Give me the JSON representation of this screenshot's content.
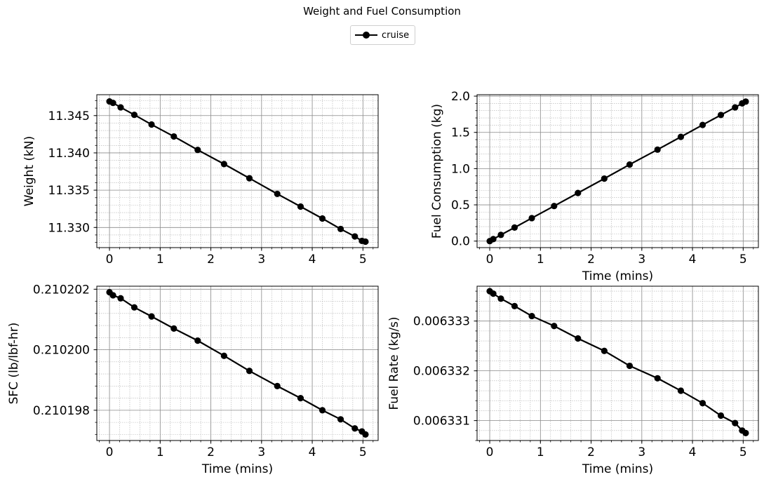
{
  "title": "Weight and Fuel Consumption",
  "legend": {
    "label": "cruise",
    "color": "#000000"
  },
  "chart_data": [
    {
      "type": "line",
      "id": "weight",
      "series": [
        {
          "name": "cruise",
          "x": [
            0,
            0.07,
            0.22,
            0.49,
            0.83,
            1.27,
            1.74,
            2.26,
            2.76,
            3.31,
            3.77,
            4.2,
            4.56,
            4.84,
            4.98,
            5.05
          ],
          "y": [
            11.3469,
            11.3467,
            11.3461,
            11.3451,
            11.3438,
            11.3422,
            11.3404,
            11.3385,
            11.3366,
            11.3345,
            11.3328,
            11.3312,
            11.3298,
            11.3288,
            11.3282,
            11.3281
          ]
        }
      ],
      "xlabel": "",
      "ylabel": "Weight (kN)",
      "xlim": [
        -0.25,
        5.3
      ],
      "ylim": [
        11.3273,
        11.3478
      ],
      "xticks": [
        0,
        1,
        2,
        3,
        4,
        5
      ],
      "xtick_labels": [
        "0",
        "1",
        "2",
        "3",
        "4",
        "5"
      ],
      "yticks": [
        11.33,
        11.335,
        11.34,
        11.345
      ],
      "ytick_labels": [
        "11.330",
        "11.335",
        "11.340",
        "11.345"
      ],
      "grid": true
    },
    {
      "type": "line",
      "id": "fuel-consumption",
      "series": [
        {
          "name": "cruise",
          "x": [
            0,
            0.07,
            0.22,
            0.49,
            0.83,
            1.27,
            1.74,
            2.26,
            2.76,
            3.31,
            3.77,
            4.2,
            4.56,
            4.84,
            4.98,
            5.05
          ],
          "y": [
            0.0,
            0.027,
            0.086,
            0.187,
            0.317,
            0.484,
            0.664,
            0.862,
            1.056,
            1.262,
            1.438,
            1.603,
            1.74,
            1.845,
            1.9,
            1.925
          ]
        }
      ],
      "xlabel": "Time (mins)",
      "ylabel": "Fuel Consumption (kg)",
      "xlim": [
        -0.25,
        5.3
      ],
      "ylim": [
        -0.09,
        2.02
      ],
      "xticks": [
        0,
        1,
        2,
        3,
        4,
        5
      ],
      "xtick_labels": [
        "0",
        "1",
        "2",
        "3",
        "4",
        "5"
      ],
      "yticks": [
        0.0,
        0.5,
        1.0,
        1.5,
        2.0
      ],
      "ytick_labels": [
        "0.0",
        "0.5",
        "1.0",
        "1.5",
        "2.0"
      ],
      "grid": true
    },
    {
      "type": "line",
      "id": "sfc",
      "series": [
        {
          "name": "cruise",
          "x": [
            0,
            0.07,
            0.22,
            0.49,
            0.83,
            1.27,
            1.74,
            2.26,
            2.76,
            3.31,
            3.77,
            4.2,
            4.56,
            4.84,
            4.98,
            5.05
          ],
          "y": [
            0.2102019,
            0.2102018,
            0.2102017,
            0.2102014,
            0.2102011,
            0.2102007,
            0.2102003,
            0.2101998,
            0.2101993,
            0.2101988,
            0.2101984,
            0.210198,
            0.2101977,
            0.2101974,
            0.2101973,
            0.2101972
          ]
        }
      ],
      "xlabel": "Time (mins)",
      "ylabel": "SFC (lb/lbf-hr)",
      "xlim": [
        -0.25,
        5.3
      ],
      "ylim": [
        0.210197,
        0.2102021
      ],
      "xticks": [
        0,
        1,
        2,
        3,
        4,
        5
      ],
      "xtick_labels": [
        "0",
        "1",
        "2",
        "3",
        "4",
        "5"
      ],
      "yticks": [
        0.210198,
        0.2102,
        0.210202
      ],
      "ytick_labels": [
        "0.210198",
        "0.210200",
        "0.210202"
      ],
      "grid": true
    },
    {
      "type": "line",
      "id": "fuel-rate",
      "series": [
        {
          "name": "cruise",
          "x": [
            0,
            0.07,
            0.22,
            0.49,
            0.83,
            1.27,
            1.74,
            2.26,
            2.76,
            3.31,
            3.77,
            4.2,
            4.56,
            4.84,
            4.98,
            5.05
          ],
          "y": [
            0.0063336,
            0.00633355,
            0.00633345,
            0.0063333,
            0.0063331,
            0.0063329,
            0.00633265,
            0.0063324,
            0.0063321,
            0.00633185,
            0.0063316,
            0.00633135,
            0.0063311,
            0.00633095,
            0.0063308,
            0.00633075
          ]
        }
      ],
      "xlabel": "Time (mins)",
      "ylabel": "Fuel Rate (kg/s)",
      "xlim": [
        -0.25,
        5.3
      ],
      "ylim": [
        0.0063306,
        0.0063337
      ],
      "xticks": [
        0,
        1,
        2,
        3,
        4,
        5
      ],
      "xtick_labels": [
        "0",
        "1",
        "2",
        "3",
        "4",
        "5"
      ],
      "yticks": [
        0.006331,
        0.006332,
        0.006333
      ],
      "ytick_labels": [
        "0.006331",
        "0.006332",
        "0.006333"
      ],
      "grid": true
    }
  ]
}
